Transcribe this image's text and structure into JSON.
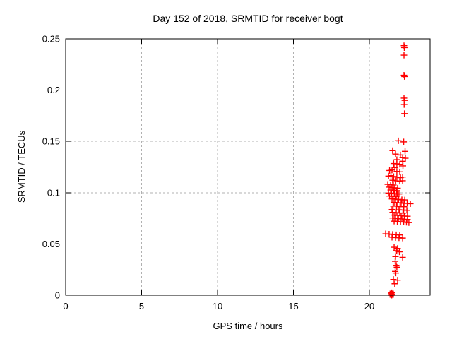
{
  "title": "Day 152 of 2018, SRMTID for receiver bogt",
  "colors": {
    "background": "#ffffff",
    "border": "#000000",
    "grid": "#b0b0b0",
    "series": "#ff0000",
    "text": "#000000"
  },
  "chart_data": {
    "type": "scatter",
    "title": "Day 152 of 2018, SRMTID for receiver bogt",
    "xlabel": "GPS time / hours",
    "ylabel": "SRMTID / TECUs",
    "xlim": [
      0,
      24
    ],
    "ylim": [
      0,
      0.25
    ],
    "xticks": {
      "values": [
        0,
        5,
        10,
        15,
        20
      ],
      "labels": [
        "0",
        "5",
        "10",
        "15",
        "20"
      ]
    },
    "yticks": {
      "values": [
        0,
        0.05,
        0.1,
        0.15,
        0.2,
        0.25
      ],
      "labels": [
        "0",
        "0.05",
        "0.1",
        "0.15",
        "0.2",
        "0.25"
      ]
    },
    "grid": true,
    "grid_style": "dashed",
    "legend": "none",
    "marker": "plus",
    "marker_color": "#ff0000",
    "series": [
      {
        "name": "SRMTID",
        "points": [
          [
            22.28,
            0.2433
          ],
          [
            22.3,
            0.2414
          ],
          [
            22.28,
            0.2341
          ],
          [
            22.28,
            0.2145
          ],
          [
            22.31,
            0.2132
          ],
          [
            22.28,
            0.1922
          ],
          [
            22.33,
            0.19
          ],
          [
            22.29,
            0.1859
          ],
          [
            22.31,
            0.1771
          ],
          [
            21.91,
            0.1506
          ],
          [
            22.26,
            0.1495
          ],
          [
            21.53,
            0.141
          ],
          [
            22.35,
            0.1403
          ],
          [
            21.72,
            0.1376
          ],
          [
            22.04,
            0.1368
          ],
          [
            22.19,
            0.1341
          ],
          [
            22.37,
            0.1336
          ],
          [
            21.81,
            0.1322
          ],
          [
            22.19,
            0.1306
          ],
          [
            21.6,
            0.1284
          ],
          [
            21.81,
            0.1281
          ],
          [
            22.0,
            0.1276
          ],
          [
            22.21,
            0.1261
          ],
          [
            21.68,
            0.1244
          ],
          [
            21.33,
            0.1216
          ],
          [
            21.49,
            0.1221
          ],
          [
            21.81,
            0.1207
          ],
          [
            22.0,
            0.1203
          ],
          [
            21.26,
            0.1162
          ],
          [
            21.42,
            0.1166
          ],
          [
            21.6,
            0.1157
          ],
          [
            21.81,
            0.1152
          ],
          [
            22.05,
            0.1146
          ],
          [
            22.19,
            0.1152
          ],
          [
            21.53,
            0.1121
          ],
          [
            21.73,
            0.1116
          ],
          [
            22.0,
            0.1111
          ],
          [
            22.19,
            0.1116
          ],
          [
            21.21,
            0.1081
          ],
          [
            21.4,
            0.1078
          ],
          [
            21.58,
            0.1075
          ],
          [
            21.3,
            0.1054
          ],
          [
            21.49,
            0.1051
          ],
          [
            21.67,
            0.1047
          ],
          [
            21.86,
            0.1044
          ],
          [
            21.4,
            0.1026
          ],
          [
            21.61,
            0.1023
          ],
          [
            21.79,
            0.102
          ],
          [
            21.26,
            0.0996
          ],
          [
            21.46,
            0.0994
          ],
          [
            21.65,
            0.0991
          ],
          [
            21.84,
            0.0989
          ],
          [
            21.95,
            0.0987
          ],
          [
            21.33,
            0.0966
          ],
          [
            21.56,
            0.0963
          ],
          [
            21.77,
            0.096
          ],
          [
            21.49,
            0.0939
          ],
          [
            21.72,
            0.0937
          ],
          [
            21.92,
            0.0934
          ],
          [
            22.14,
            0.0931
          ],
          [
            22.33,
            0.0929
          ],
          [
            21.63,
            0.0904
          ],
          [
            21.86,
            0.0902
          ],
          [
            22.09,
            0.09
          ],
          [
            22.28,
            0.0897
          ],
          [
            22.49,
            0.0895
          ],
          [
            22.7,
            0.0892
          ],
          [
            21.56,
            0.087
          ],
          [
            21.79,
            0.0868
          ],
          [
            22.02,
            0.0865
          ],
          [
            22.26,
            0.0863
          ],
          [
            21.49,
            0.0835
          ],
          [
            21.95,
            0.0833
          ],
          [
            22.26,
            0.083
          ],
          [
            22.47,
            0.0828
          ],
          [
            21.53,
            0.0808
          ],
          [
            21.77,
            0.0805
          ],
          [
            22.0,
            0.0802
          ],
          [
            22.21,
            0.08
          ],
          [
            21.63,
            0.0781
          ],
          [
            21.86,
            0.0778
          ],
          [
            22.09,
            0.0775
          ],
          [
            22.3,
            0.0772
          ],
          [
            22.51,
            0.077
          ],
          [
            21.53,
            0.0753
          ],
          [
            21.72,
            0.075
          ],
          [
            21.91,
            0.0747
          ],
          [
            22.14,
            0.0744
          ],
          [
            22.33,
            0.0741
          ],
          [
            22.51,
            0.0739
          ],
          [
            21.63,
            0.0722
          ],
          [
            21.84,
            0.0719
          ],
          [
            22.05,
            0.0716
          ],
          [
            22.26,
            0.0713
          ],
          [
            22.44,
            0.0711
          ],
          [
            22.6,
            0.0708
          ],
          [
            21.07,
            0.0599
          ],
          [
            21.3,
            0.0596
          ],
          [
            21.53,
            0.0593
          ],
          [
            21.77,
            0.059
          ],
          [
            22.0,
            0.0588
          ],
          [
            21.49,
            0.0565
          ],
          [
            21.72,
            0.0562
          ],
          [
            21.95,
            0.056
          ],
          [
            22.19,
            0.0557
          ],
          [
            21.63,
            0.0468
          ],
          [
            21.86,
            0.0457
          ],
          [
            21.79,
            0.0434
          ],
          [
            21.88,
            0.0429
          ],
          [
            21.98,
            0.0423
          ],
          [
            21.72,
            0.0377
          ],
          [
            22.19,
            0.0369
          ],
          [
            21.7,
            0.033
          ],
          [
            21.77,
            0.0291
          ],
          [
            21.81,
            0.0273
          ],
          [
            21.7,
            0.0232
          ],
          [
            21.74,
            0.0216
          ],
          [
            21.58,
            0.0154
          ],
          [
            21.86,
            0.0147
          ],
          [
            21.67,
            0.0112
          ],
          [
            21.44,
            0.0015
          ],
          [
            21.47,
            0.0025
          ],
          [
            21.5,
            0.0008
          ],
          [
            21.47,
            0.0
          ]
        ]
      }
    ],
    "zero_cluster": {
      "x": 21.47,
      "y": 0.0
    }
  }
}
